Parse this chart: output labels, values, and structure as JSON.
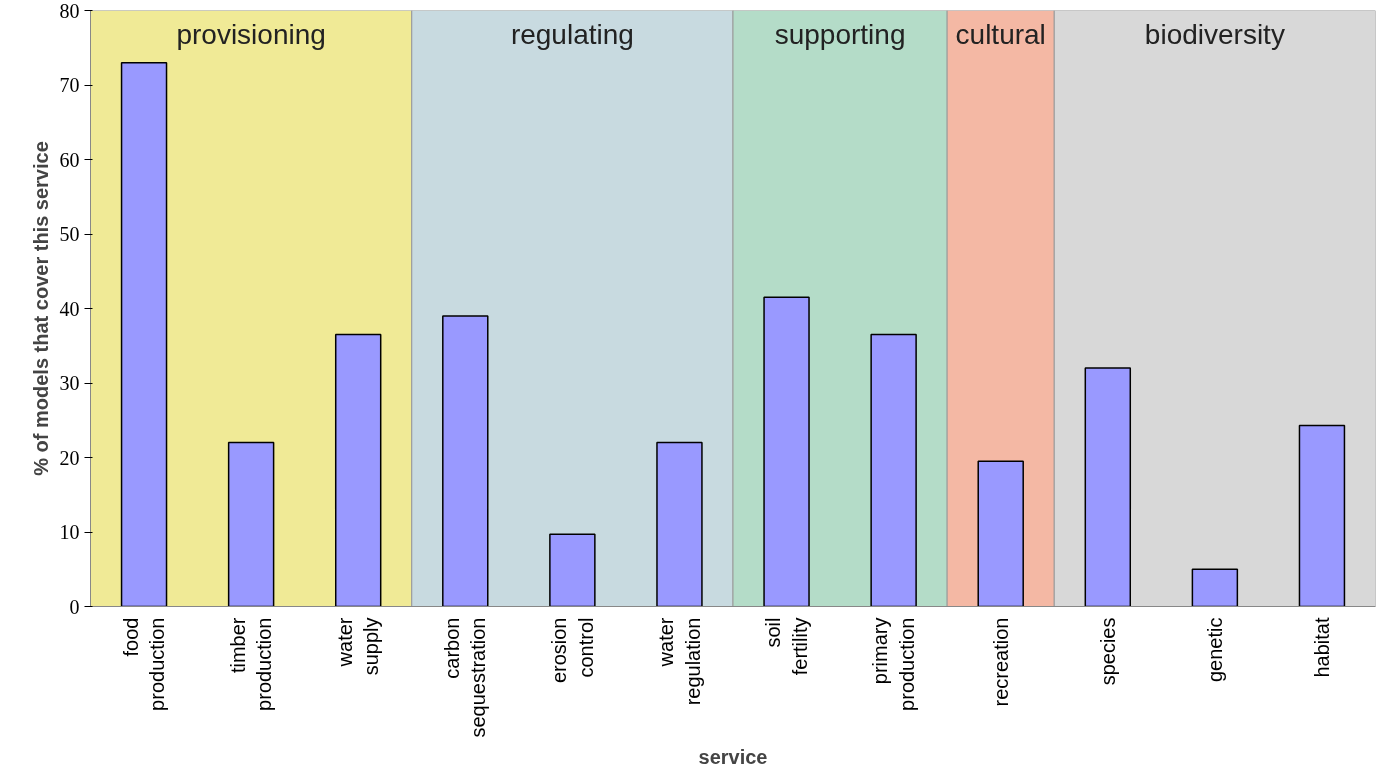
{
  "chart_data": {
    "type": "bar",
    "xlabel": "service",
    "ylabel": "% of models that cover this service",
    "categories": [
      "food production",
      "timber production",
      "water supply",
      "carbon sequestration",
      "erosion control",
      "water regulation",
      "soil fertility",
      "primary production",
      "recreation",
      "species",
      "genetic",
      "habitat"
    ],
    "values": [
      73,
      22,
      36.5,
      39,
      9.7,
      22,
      41.5,
      36.5,
      19.5,
      32,
      5,
      24.3
    ],
    "color": "#9999ff",
    "ylim": [
      0,
      80
    ],
    "yticks": [
      0,
      10,
      20,
      30,
      40,
      50,
      60,
      70,
      80
    ],
    "bands": [
      {
        "axis": "x",
        "from": "food production",
        "to": "water supply",
        "label": "provisioning",
        "color": "#f0ea96"
      },
      {
        "axis": "x",
        "from": "carbon sequestration",
        "to": "water regulation",
        "label": "regulating",
        "color": "#c8dae0"
      },
      {
        "axis": "x",
        "from": "soil fertility",
        "to": "primary production",
        "label": "supporting",
        "color": "#b4dcc8"
      },
      {
        "axis": "x",
        "from": "recreation",
        "to": "recreation",
        "label": "cultural",
        "color": "#f4b8a4"
      },
      {
        "axis": "x",
        "from": "species",
        "to": "habitat",
        "label": "biodiversity",
        "color": "#d8d8d8"
      }
    ]
  }
}
